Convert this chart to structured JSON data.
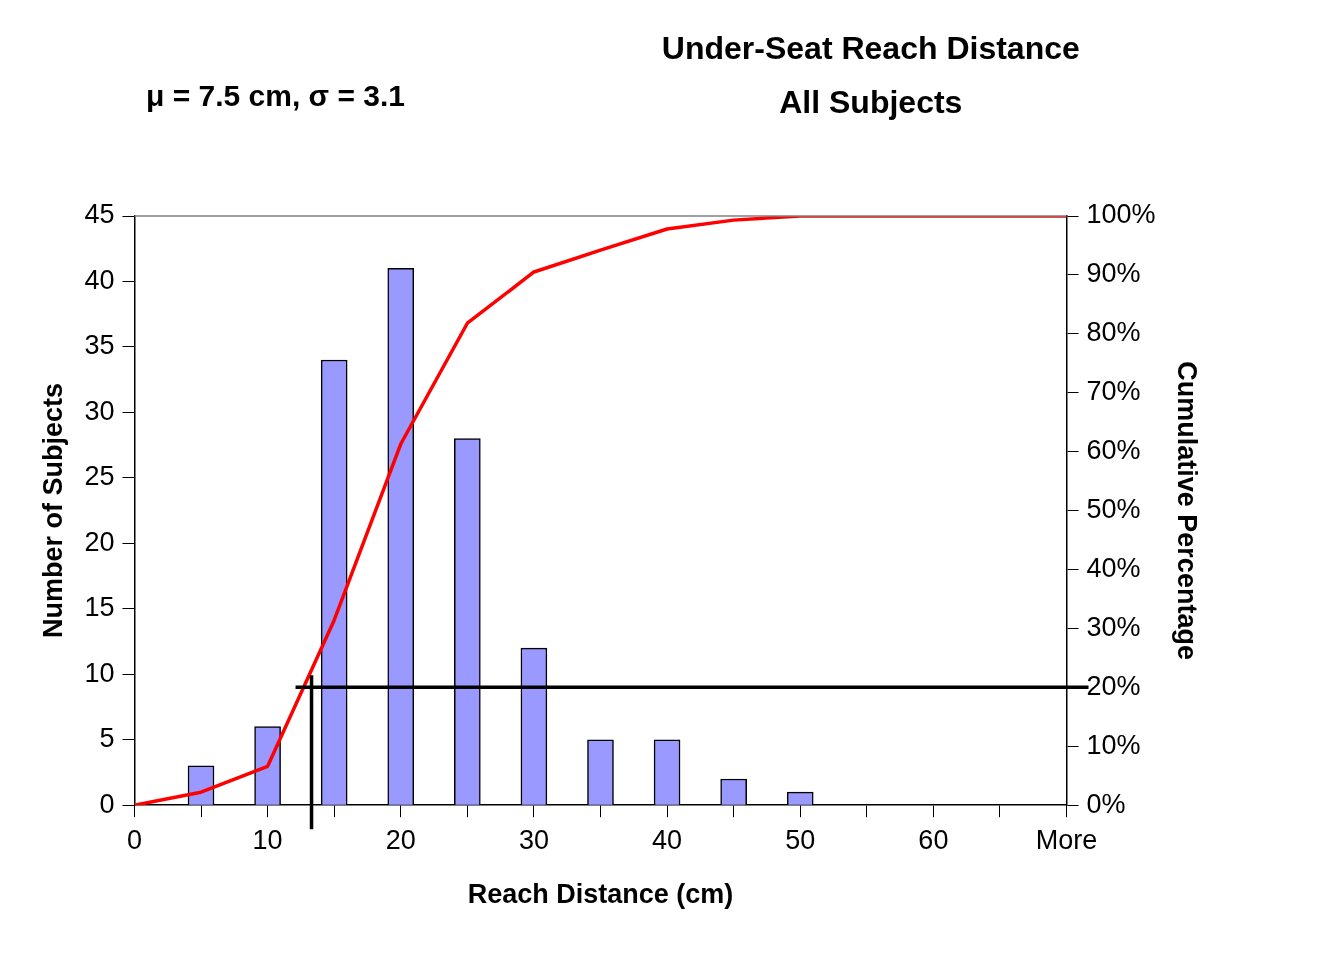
{
  "chart_data": {
    "type": "bar",
    "title": "Under-Seat Reach Distance",
    "subtitle": "All Subjects",
    "xlabel": "Reach Distance (cm)",
    "ylabel": "Number of Subjects",
    "y2label": "Cumulative Percentage",
    "annotations": [
      "μ = 7.5 cm, σ = 3.1"
    ],
    "x": [
      0,
      5,
      10,
      15,
      20,
      25,
      30,
      35,
      40,
      45,
      50,
      55,
      60,
      65,
      70
    ],
    "xlim": [
      0,
      70
    ],
    "xticks": [
      0,
      {
        "value": 5,
        "label": null
      },
      10,
      {
        "value": 15,
        "label": null
      },
      20,
      {
        "value": 25,
        "label": null
      },
      30,
      {
        "value": 35,
        "label": null
      },
      40,
      {
        "value": 45,
        "label": null
      },
      50,
      {
        "value": 55,
        "label": null
      },
      60,
      {
        "value": 65,
        "label": null
      },
      {
        "value": 70,
        "label": "More"
      }
    ],
    "ylim": [
      0,
      45
    ],
    "yticks": [
      0,
      5,
      10,
      15,
      20,
      25,
      30,
      35,
      40,
      45
    ],
    "y2lim": [
      0,
      100
    ],
    "y2ticks": [
      {
        "value": 0,
        "label": "0%"
      },
      {
        "value": 10,
        "label": "10%"
      },
      {
        "value": 20,
        "label": "20%"
      },
      {
        "value": 30,
        "label": "30%"
      },
      {
        "value": 40,
        "label": "40%"
      },
      {
        "value": 50,
        "label": "50%"
      },
      {
        "value": 60,
        "label": "60%"
      },
      {
        "value": 70,
        "label": "70%"
      },
      {
        "value": 80,
        "label": "80%"
      },
      {
        "value": 90,
        "label": "90%"
      },
      {
        "value": 100,
        "label": "100%"
      }
    ],
    "series": [
      {
        "color": "#9999ff",
        "values": [
          0,
          3,
          6,
          34,
          41,
          28,
          12,
          5,
          5,
          2,
          1,
          0,
          0,
          0,
          0
        ]
      },
      {
        "type": "line",
        "axis": "y2",
        "color": "#ff0000",
        "values": [
          0,
          2.2,
          6.6,
          31.4,
          61.3,
          81.8,
          90.5,
          94.2,
          97.8,
          99.3,
          100,
          100,
          100,
          100,
          100
        ]
      }
    ],
    "ref_lines": [
      {
        "axis": "x",
        "value": 13.3,
        "color": "#000000"
      },
      {
        "axis": "y2",
        "value": 20,
        "color": "#000000"
      }
    ],
    "grid": false,
    "legend": false,
    "marker": "none"
  }
}
